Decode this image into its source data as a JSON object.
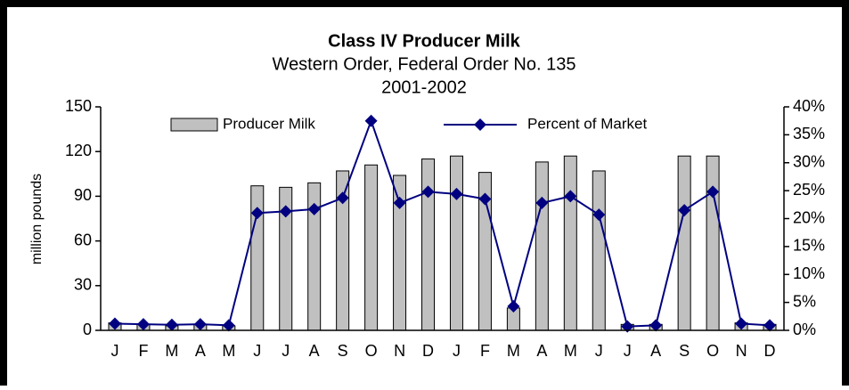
{
  "chart_data": {
    "type": "bar_line",
    "title": "Class IV Producer Milk",
    "subtitle": "Western Order, Federal Order No. 135",
    "subtitle2": "2001-2002",
    "ylabel": "million pounds",
    "categories": [
      "J",
      "F",
      "M",
      "A",
      "M",
      "J",
      "J",
      "A",
      "S",
      "O",
      "N",
      "D",
      "J",
      "F",
      "M",
      "A",
      "M",
      "J",
      "J",
      "A",
      "S",
      "O",
      "N",
      "D"
    ],
    "series": [
      {
        "name": "Producer Milk",
        "type": "bar",
        "color": "#c0c0c0",
        "values": [
          5,
          4,
          3,
          4,
          3,
          97,
          96,
          99,
          107,
          111,
          104,
          115,
          117,
          106,
          15,
          113,
          117,
          107,
          4,
          4,
          117,
          117,
          5,
          4
        ]
      },
      {
        "name": "Percent of Market",
        "type": "line",
        "axis": "y2",
        "color": "#000080",
        "values": [
          1.2,
          1.1,
          1.0,
          1.1,
          0.9,
          21.0,
          21.3,
          21.7,
          23.7,
          37.5,
          22.8,
          24.8,
          24.4,
          23.5,
          4.3,
          22.8,
          24.0,
          20.7,
          0.7,
          0.9,
          21.5,
          24.8,
          1.2,
          0.9
        ]
      }
    ],
    "ylim": [
      0,
      150
    ],
    "yticks": [
      0,
      30,
      60,
      90,
      120,
      150
    ],
    "y2lim": [
      0,
      40
    ],
    "y2ticks": [
      {
        "value": 0,
        "label": "0%"
      },
      {
        "value": 5,
        "label": "5%"
      },
      {
        "value": 10,
        "label": "10%"
      },
      {
        "value": 15,
        "label": "15%"
      },
      {
        "value": 20,
        "label": "20%"
      },
      {
        "value": 25,
        "label": "25%"
      },
      {
        "value": 30,
        "label": "30%"
      },
      {
        "value": 35,
        "label": "35%"
      },
      {
        "value": 40,
        "label": "40%"
      }
    ]
  }
}
